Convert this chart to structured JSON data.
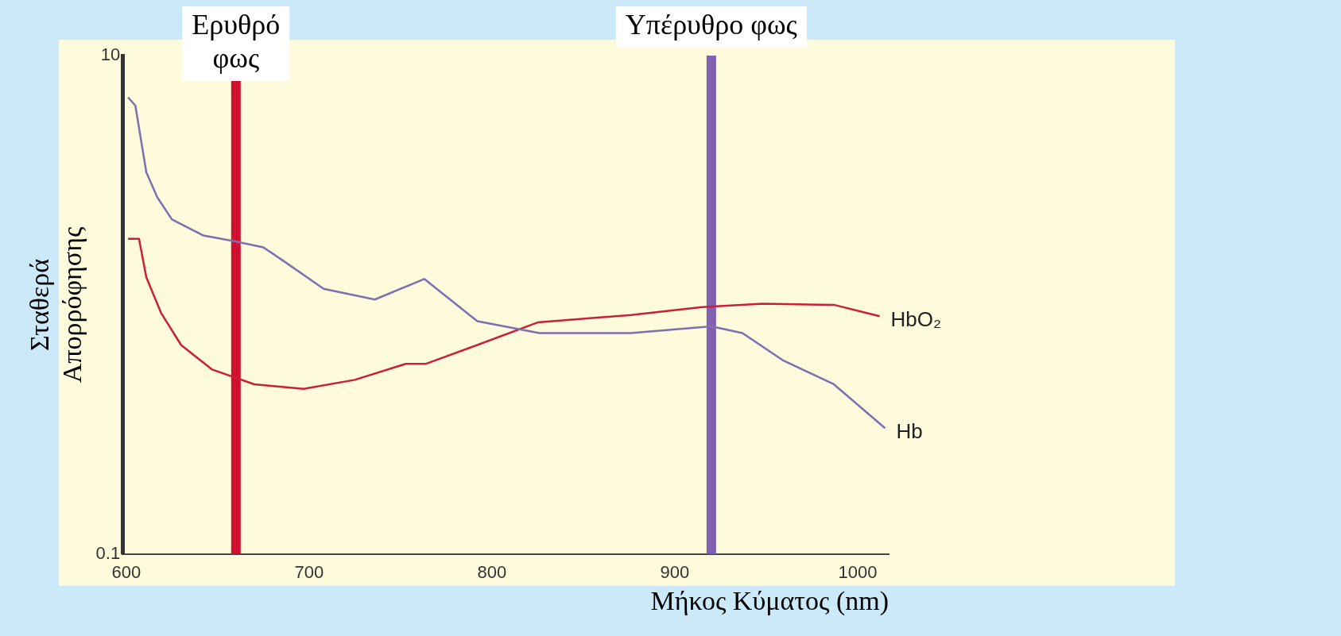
{
  "chart_data": {
    "type": "line",
    "xlabel": "Μήκος Κύματος (nm)",
    "ylabel": "Σταθερά Απορρόφησης",
    "log": "y",
    "grid": false,
    "legend": false,
    "marker": "none",
    "line_style": "solid",
    "xlim": [
      598,
      1017
    ],
    "xticks": [
      600,
      700,
      800,
      900,
      1000
    ],
    "ylim": [
      0.1,
      10
    ],
    "yticks": [
      0.1,
      10
    ],
    "series": [
      {
        "name": "Hb",
        "color": "#7f6fb0",
        "x": [
          601,
          605,
          611,
          617,
          625,
          642,
          659,
          675,
          686,
          708,
          736,
          763,
          792,
          826,
          876,
          920,
          937,
          959,
          987,
          1015
        ],
        "values": [
          6.8,
          6.3,
          3.4,
          2.7,
          2.2,
          1.9,
          1.8,
          1.7,
          1.5,
          1.16,
          1.05,
          1.27,
          0.86,
          0.77,
          0.77,
          0.82,
          0.77,
          0.6,
          0.48,
          0.32
        ]
      },
      {
        "name": "HbO₂",
        "color": "#c8203c",
        "x": [
          601,
          607,
          611,
          619,
          630,
          647,
          670,
          697,
          725,
          753,
          764,
          792,
          825,
          876,
          915,
          948,
          987,
          1012
        ],
        "values": [
          1.84,
          1.84,
          1.29,
          0.93,
          0.69,
          0.55,
          0.48,
          0.46,
          0.5,
          0.58,
          0.58,
          0.69,
          0.85,
          0.91,
          0.98,
          1.01,
          1.0,
          0.9
        ]
      }
    ],
    "ref_lines": [
      {
        "axis": "x",
        "value": 660,
        "label": "Ερυθρό\nφως",
        "color": "#d01030"
      },
      {
        "axis": "x",
        "value": 920,
        "label": "Υπέρυθρο φως",
        "color": "#8060b0"
      }
    ]
  }
}
